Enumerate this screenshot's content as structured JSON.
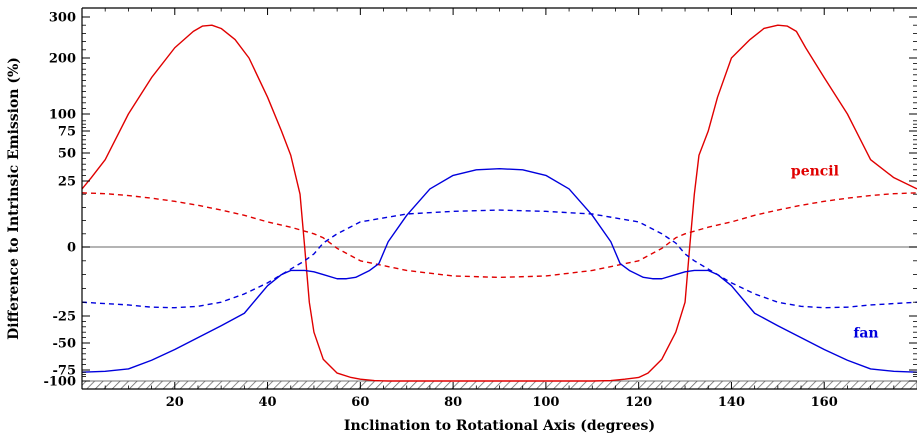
{
  "chart_data": {
    "type": "line",
    "title": "",
    "xlabel": "Inclination to Rotational Axis (degrees)",
    "ylabel": "Difference to Intrinsic Emission (%)",
    "xlim": [
      0,
      180
    ],
    "ylim": [
      -100,
      300
    ],
    "y_scale": "piecewise (asinh-like: compressed at large magnitudes)",
    "x_ticks": [
      20,
      40,
      60,
      80,
      100,
      120,
      140,
      160
    ],
    "x_tick_labels": [
      "20",
      "40",
      "60",
      "80",
      "100",
      "120",
      "140",
      "160"
    ],
    "y_ticks": [
      300,
      200,
      100,
      75,
      50,
      25,
      0,
      -25,
      -50,
      -75,
      -100
    ],
    "y_tick_labels": [
      "300",
      "200",
      "100",
      "75",
      "50",
      "25",
      "0",
      "-25",
      "-50",
      "-75",
      "-100"
    ],
    "zero_line": true,
    "hatched_band_below": -100,
    "annotations": [
      {
        "text": "pencil",
        "color": "#e00000",
        "x": 158,
        "y": 30
      },
      {
        "text": "fan",
        "color": "#0000dd",
        "x": 169,
        "y": -45
      }
    ],
    "series": [
      {
        "color": "#e00000",
        "style": "solid",
        "x": [
          0,
          2,
          5,
          10,
          15,
          20,
          24,
          26,
          28,
          30,
          33,
          36,
          40,
          43,
          45,
          47,
          48,
          49,
          50,
          52,
          55,
          58,
          60,
          63,
          66,
          70,
          80,
          90,
          100,
          110,
          114,
          117,
          120,
          122,
          125,
          128,
          130,
          131,
          132,
          133,
          135,
          137,
          140,
          144,
          147,
          150,
          152,
          154,
          156,
          160,
          165,
          170,
          175,
          180
        ],
        "y": [
          22,
          28,
          44,
          100,
          165,
          225,
          265,
          278,
          280,
          272,
          245,
          200,
          130,
          75,
          48,
          20,
          0,
          -20,
          -40,
          -65,
          -82,
          -92,
          -96,
          -99,
          -100,
          -100,
          -100,
          -100,
          -100,
          -100,
          -99,
          -96,
          -92,
          -82,
          -65,
          -40,
          -20,
          0,
          20,
          48,
          75,
          130,
          200,
          245,
          272,
          280,
          278,
          265,
          225,
          165,
          100,
          44,
          28,
          22
        ]
      },
      {
        "color": "#e00000",
        "style": "dashed",
        "x": [
          0,
          5,
          10,
          15,
          20,
          25,
          30,
          35,
          40,
          45,
          48,
          50,
          52,
          55,
          60,
          70,
          80,
          90,
          100,
          110,
          120,
          125,
          128,
          130,
          132,
          135,
          140,
          145,
          150,
          155,
          160,
          165,
          170,
          175,
          180
        ],
        "y": [
          20.5,
          20.2,
          19.5,
          18.5,
          17.3,
          15.8,
          14,
          12,
          9.5,
          7.5,
          6,
          5,
          3.5,
          -0.5,
          -5,
          -8.5,
          -10.5,
          -11,
          -10.5,
          -8.5,
          -5,
          -0.5,
          3.5,
          5,
          6,
          7.5,
          9.5,
          12,
          14,
          15.8,
          17.3,
          18.5,
          19.5,
          20.2,
          20.5
        ]
      },
      {
        "color": "#0000dd",
        "style": "solid",
        "x": [
          0,
          5,
          10,
          15,
          20,
          25,
          30,
          35,
          40,
          43,
          45,
          48,
          50,
          52,
          55,
          57,
          59,
          62,
          64,
          66,
          70,
          75,
          80,
          85,
          90,
          95,
          100,
          105,
          110,
          114,
          116,
          118,
          121,
          123,
          125,
          128,
          130,
          132,
          135,
          137,
          140,
          145,
          150,
          155,
          160,
          165,
          170,
          175,
          180
        ],
        "y": [
          -80,
          -78,
          -74,
          -66,
          -56,
          -45,
          -34,
          -24,
          -14,
          -10,
          -8.5,
          -8.5,
          -9,
          -10,
          -11.5,
          -11.5,
          -11,
          -8.5,
          -6,
          2,
          12,
          22,
          30,
          35,
          36,
          35,
          30,
          22,
          12,
          2,
          -6,
          -8.5,
          -11,
          -11.5,
          -11.5,
          -10,
          -9,
          -8.5,
          -8.5,
          -10,
          -14,
          -24,
          -34,
          -45,
          -56,
          -66,
          -74,
          -78,
          -80
        ]
      },
      {
        "color": "#0000dd",
        "style": "dashed",
        "x": [
          0,
          5,
          10,
          15,
          20,
          25,
          30,
          35,
          40,
          45,
          48,
          50,
          52,
          55,
          60,
          70,
          80,
          90,
          100,
          110,
          120,
          125,
          128,
          130,
          132,
          135,
          140,
          145,
          150,
          155,
          160,
          165,
          170,
          175,
          180
        ],
        "y": [
          -20,
          -20.5,
          -21,
          -21.8,
          -22,
          -21.5,
          -20,
          -17,
          -13,
          -8,
          -5,
          -2.5,
          1.5,
          5,
          9.5,
          12.5,
          13.5,
          14,
          13.5,
          12.5,
          9.5,
          5,
          1.5,
          -2.5,
          -5,
          -8,
          -13,
          -17,
          -20,
          -21.5,
          -22,
          -21.8,
          -21,
          -20.5,
          -20
        ]
      }
    ]
  }
}
